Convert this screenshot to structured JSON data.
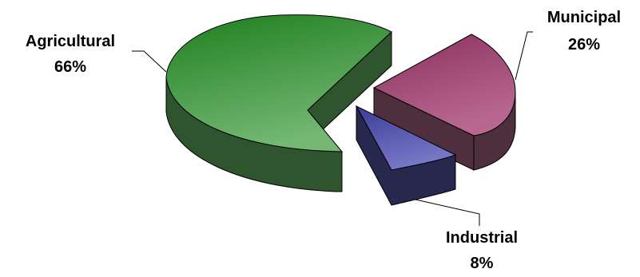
{
  "chart_data": {
    "type": "pie",
    "style": "3d-exploded",
    "slices": [
      {
        "key": "agricultural",
        "label": "Agricultural",
        "value": 66,
        "value_label": "66%",
        "color_top": "#74b874",
        "color_top_dark": "#1f7f1f",
        "color_side": "#2f552f"
      },
      {
        "key": "municipal",
        "label": "Municipal",
        "value": 26,
        "value_label": "26%",
        "color_top": "#b86890",
        "color_top_dark": "#8a2f5e",
        "color_side": "#4e2f3e"
      },
      {
        "key": "industrial",
        "label": "Industrial",
        "value": 8,
        "value_label": "8%",
        "color_top": "#7878c8",
        "color_top_dark": "#3c3c98",
        "color_side": "#26284e"
      }
    ],
    "legend": "none",
    "labels_with_leader_lines": true
  }
}
